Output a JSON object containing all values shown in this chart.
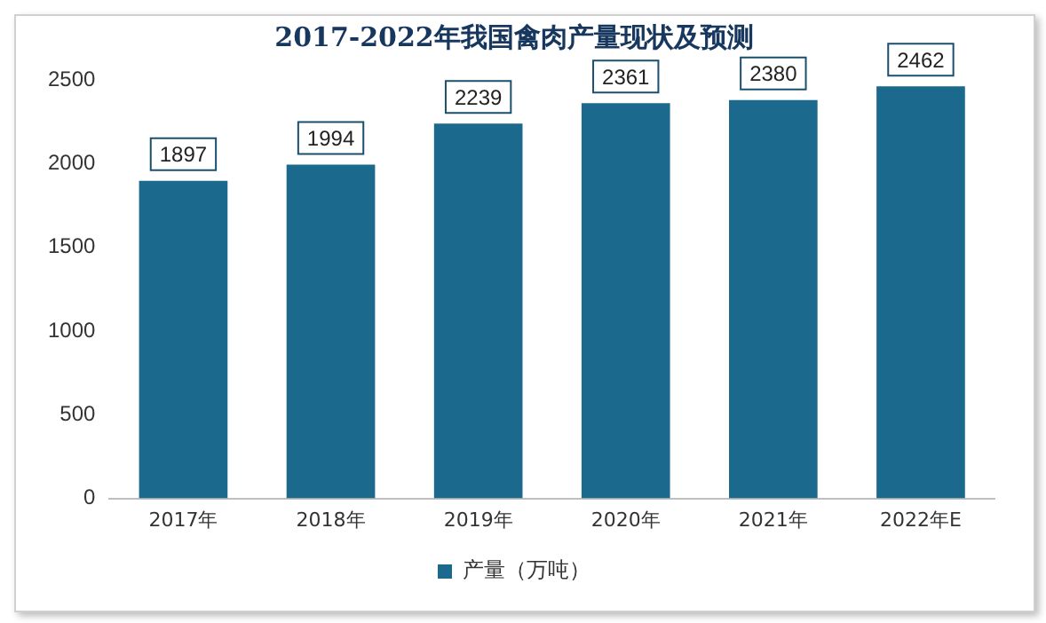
{
  "chart_data": {
    "type": "bar",
    "title": "2017-2022年我国禽肉产量现状及预测",
    "categories": [
      "2017年",
      "2018年",
      "2019年",
      "2020年",
      "2021年",
      "2022年E"
    ],
    "series": [
      {
        "name": "产量（万吨）",
        "color": "#1b6a8d",
        "values": [
          1897,
          1994,
          2239,
          2361,
          2380,
          2462
        ]
      }
    ],
    "ylim": [
      0,
      2500
    ],
    "yticks": [
      0,
      500,
      1000,
      1500,
      2000,
      2500
    ],
    "grid": false,
    "legend": "bottom",
    "data_labels": true
  }
}
